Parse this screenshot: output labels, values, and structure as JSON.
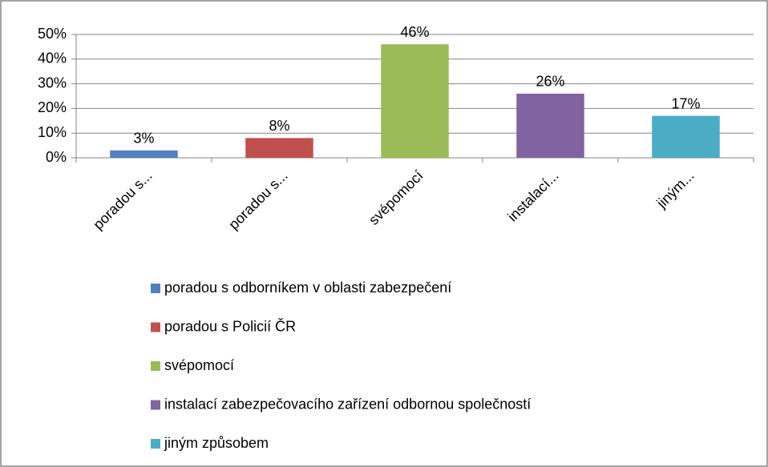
{
  "chart_data": {
    "type": "bar",
    "categories": [
      "poradou s...",
      "poradou s...",
      "svépomocí",
      "instalací...",
      "jiným..."
    ],
    "values": [
      3,
      8,
      46,
      26,
      17
    ],
    "value_labels": [
      "3%",
      "8%",
      "46%",
      "26%",
      "17%"
    ],
    "colors": [
      "#4f81bd",
      "#c0504d",
      "#9bbb59",
      "#8064a2",
      "#4bacc6"
    ],
    "legend": [
      "poradou s odborníkem v oblasti zabezpečení",
      "poradou s Policií ČR",
      "svépomocí",
      "instalací zabezpečovacího zařízení odbornou společností",
      "jiným způsobem"
    ],
    "ylim": [
      0,
      50
    ],
    "yticks": [
      {
        "value": 0,
        "label": "0%"
      },
      {
        "value": 10,
        "label": "10%"
      },
      {
        "value": 20,
        "label": "20%"
      },
      {
        "value": 30,
        "label": "30%"
      },
      {
        "value": 40,
        "label": "40%"
      },
      {
        "value": 50,
        "label": "50%"
      }
    ],
    "grid": true
  }
}
